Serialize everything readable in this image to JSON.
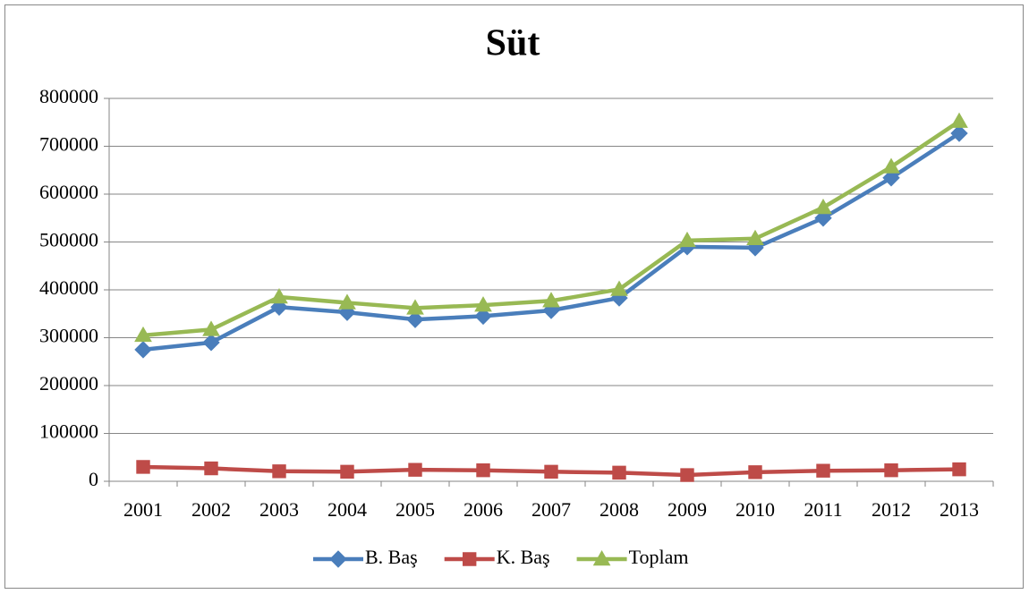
{
  "chart_data": {
    "type": "line",
    "title": "Süt",
    "categories": [
      "2001",
      "2002",
      "2003",
      "2004",
      "2005",
      "2006",
      "2007",
      "2008",
      "2009",
      "2010",
      "2011",
      "2012",
      "2013"
    ],
    "series": [
      {
        "name": "B. Baş",
        "color": "#4a7ebb",
        "marker": "diamond",
        "values": [
          275000,
          290000,
          364000,
          353000,
          338000,
          345000,
          357000,
          383000,
          490000,
          488000,
          550000,
          634000,
          727000
        ]
      },
      {
        "name": "K. Baş",
        "color": "#be4b48",
        "marker": "square",
        "values": [
          30000,
          27000,
          21000,
          20000,
          24000,
          23000,
          20000,
          18000,
          13000,
          19000,
          22000,
          23000,
          25000
        ]
      },
      {
        "name": "Toplam",
        "color": "#98b954",
        "marker": "triangle",
        "values": [
          305000,
          317000,
          385000,
          373000,
          362000,
          368000,
          377000,
          401000,
          503000,
          507000,
          572000,
          657000,
          752000
        ]
      }
    ],
    "ylim": [
      0,
      800000
    ],
    "yticks": [
      0,
      100000,
      200000,
      300000,
      400000,
      500000,
      600000,
      700000,
      800000
    ],
    "grid": true,
    "legend": "bottom"
  }
}
